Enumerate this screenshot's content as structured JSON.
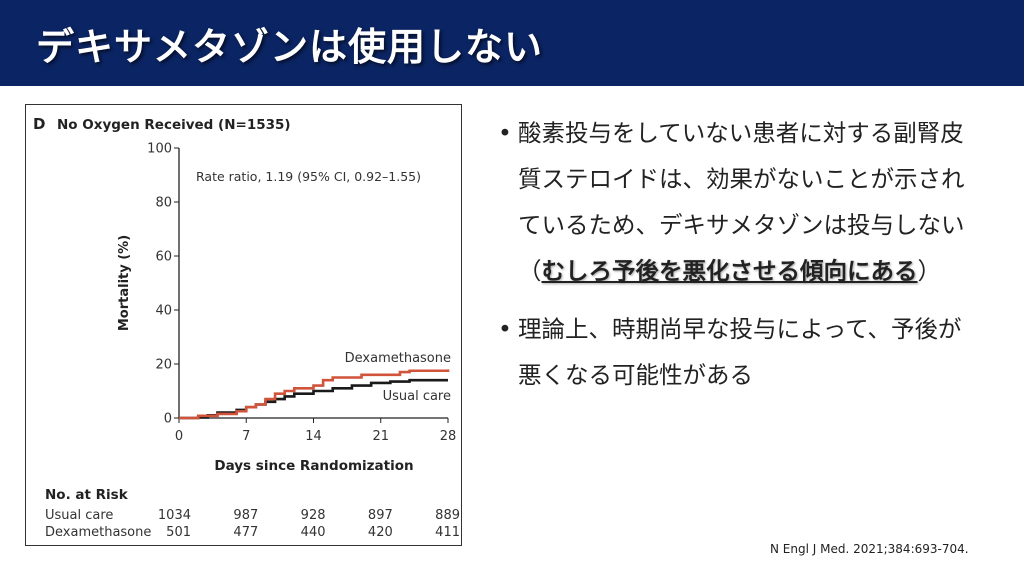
{
  "slide": {
    "title": "デキサメタゾンは使用しない",
    "bullets": [
      {
        "lines": [
          "酸素投与をしていない患者に対する副腎皮",
          "質ステロイドは、効果がないことが示され",
          "ているため、デキサメタゾンは投与しない"
        ],
        "paren_open": "（",
        "emphasis": "むしろ予後を悪化させる傾向にある",
        "paren_close": "）"
      },
      {
        "lines": [
          "理論上、時期尚早な投与によって、予後が",
          "悪くなる可能性がある"
        ]
      }
    ],
    "bullet_symbol": "•",
    "citation": "N Engl J Med. 2021;384:693-704."
  },
  "chart_data": {
    "type": "line",
    "panel_letter": "D",
    "title": "No Oxygen Received (N=1535)",
    "annotation": "Rate ratio, 1.19 (95% CI, 0.92–1.55)",
    "xlabel": "Days since Randomization",
    "ylabel": "Mortality (%)",
    "xlim": [
      0,
      28
    ],
    "ylim": [
      0,
      100
    ],
    "xticks": [
      "0",
      "7",
      "14",
      "21",
      "28"
    ],
    "yticks": [
      "0",
      "20",
      "40",
      "60",
      "80",
      "100"
    ],
    "grid": false,
    "series": [
      {
        "name": "Dexamethasone",
        "color": "#d0533a",
        "x": [
          0,
          2,
          4,
          6,
          7,
          8,
          9,
          10,
          11,
          12,
          14,
          15,
          16,
          19,
          23,
          24,
          28
        ],
        "y": [
          0,
          0.8,
          1.5,
          2.5,
          4,
          5,
          7,
          9,
          10,
          11,
          12,
          14,
          15,
          16,
          17,
          17.5,
          18
        ]
      },
      {
        "name": "Usual care",
        "color": "#1a1a1a",
        "x": [
          0,
          2,
          3,
          4,
          6,
          7,
          8,
          9,
          10,
          11,
          12,
          14,
          16,
          18,
          20,
          22,
          24,
          28
        ],
        "y": [
          0,
          0.2,
          1,
          2,
          3,
          4,
          5,
          6,
          7,
          8,
          9,
          10,
          11,
          12,
          13,
          13.5,
          14,
          14
        ]
      }
    ],
    "risk_table": {
      "title": "No. at Risk",
      "rows": [
        {
          "label": "Usual care",
          "values": [
            "1034",
            "987",
            "928",
            "897",
            "889"
          ]
        },
        {
          "label": "Dexamethasone",
          "values": [
            "501",
            "477",
            "440",
            "420",
            "411"
          ]
        }
      ]
    }
  }
}
